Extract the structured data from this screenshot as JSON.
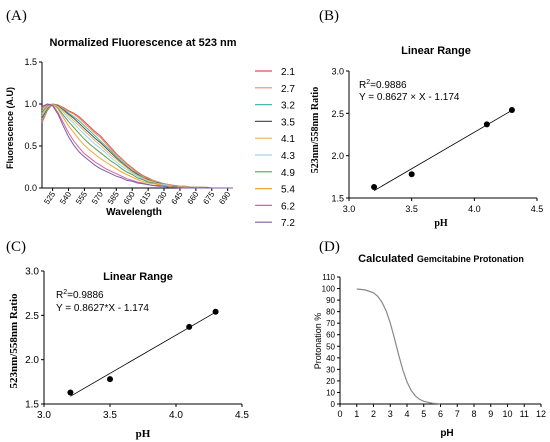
{
  "panels": {
    "a": {
      "letter": "(A)"
    },
    "b": {
      "letter": "(B)"
    },
    "c": {
      "letter": "(C)"
    },
    "d": {
      "letter": "(D)"
    }
  },
  "chart_data": [
    {
      "panel": "(A)",
      "type": "line",
      "title": "Normalized Fluorescence at 523 nm",
      "xlabel": "Wavelength",
      "ylabel": "Fluorescence (A.U)",
      "xlim": [
        515,
        695
      ],
      "ylim": [
        0,
        1.5
      ],
      "xticks": [
        525,
        540,
        555,
        570,
        585,
        600,
        615,
        630,
        645,
        660,
        675,
        690
      ],
      "yticks": [
        0.0,
        0.5,
        1.0,
        1.5
      ],
      "legend_position": "right",
      "x": [
        515,
        520,
        525,
        530,
        535,
        540,
        545,
        550,
        555,
        560,
        565,
        570,
        575,
        580,
        585,
        590,
        595,
        600,
        605,
        610,
        615,
        620,
        625,
        630,
        635,
        640,
        645,
        650,
        655,
        660,
        665,
        670,
        675,
        680,
        685,
        690,
        695
      ],
      "series": [
        {
          "name": "2.1",
          "color": "#d9534f",
          "values": [
            0.78,
            0.92,
            1.0,
            0.99,
            0.96,
            0.92,
            0.89,
            0.85,
            0.79,
            0.73,
            0.67,
            0.62,
            0.55,
            0.48,
            0.41,
            0.35,
            0.29,
            0.24,
            0.19,
            0.15,
            0.12,
            0.09,
            0.07,
            0.05,
            0.04,
            0.03,
            0.02,
            0.02,
            0.01,
            0.01,
            0.01,
            0.01,
            0.0,
            0.0,
            0.0,
            0.0,
            0.0
          ]
        },
        {
          "name": "2.7",
          "color": "#e8915a",
          "values": [
            0.8,
            0.93,
            1.0,
            0.99,
            0.95,
            0.91,
            0.88,
            0.83,
            0.77,
            0.71,
            0.65,
            0.6,
            0.53,
            0.46,
            0.4,
            0.34,
            0.28,
            0.23,
            0.18,
            0.14,
            0.11,
            0.09,
            0.07,
            0.05,
            0.04,
            0.03,
            0.02,
            0.02,
            0.01,
            0.01,
            0.01,
            0.0,
            0.0,
            0.0,
            0.0,
            0.0,
            0.0
          ]
        },
        {
          "name": "3.2",
          "color": "#4db8b0",
          "values": [
            0.82,
            0.94,
            1.0,
            0.98,
            0.94,
            0.89,
            0.85,
            0.8,
            0.74,
            0.68,
            0.62,
            0.56,
            0.5,
            0.44,
            0.38,
            0.32,
            0.26,
            0.21,
            0.17,
            0.13,
            0.1,
            0.08,
            0.06,
            0.05,
            0.03,
            0.03,
            0.02,
            0.01,
            0.01,
            0.01,
            0.01,
            0.0,
            0.0,
            0.0,
            0.0,
            0.0,
            0.0
          ]
        },
        {
          "name": "3.5",
          "color": "#555555",
          "values": [
            0.84,
            0.95,
            1.0,
            0.98,
            0.93,
            0.88,
            0.83,
            0.77,
            0.71,
            0.65,
            0.59,
            0.54,
            0.48,
            0.42,
            0.36,
            0.3,
            0.25,
            0.2,
            0.16,
            0.12,
            0.1,
            0.07,
            0.06,
            0.04,
            0.03,
            0.02,
            0.02,
            0.01,
            0.01,
            0.01,
            0.0,
            0.0,
            0.0,
            0.0,
            0.0,
            0.0,
            0.0
          ]
        },
        {
          "name": "4.1",
          "color": "#e6b95c",
          "values": [
            0.86,
            0.96,
            1.0,
            0.97,
            0.92,
            0.86,
            0.8,
            0.74,
            0.68,
            0.62,
            0.56,
            0.51,
            0.45,
            0.39,
            0.34,
            0.29,
            0.24,
            0.19,
            0.15,
            0.12,
            0.09,
            0.07,
            0.05,
            0.04,
            0.03,
            0.02,
            0.02,
            0.01,
            0.01,
            0.01,
            0.0,
            0.0,
            0.0,
            0.0,
            0.0,
            0.0,
            0.0
          ]
        },
        {
          "name": "4.3",
          "color": "#9fd3ea",
          "values": [
            0.88,
            0.97,
            1.0,
            0.96,
            0.9,
            0.83,
            0.77,
            0.7,
            0.64,
            0.58,
            0.52,
            0.47,
            0.42,
            0.36,
            0.31,
            0.26,
            0.22,
            0.18,
            0.14,
            0.11,
            0.08,
            0.06,
            0.05,
            0.04,
            0.03,
            0.02,
            0.01,
            0.01,
            0.01,
            0.0,
            0.0,
            0.0,
            0.0,
            0.0,
            0.0,
            0.0,
            0.0
          ]
        },
        {
          "name": "4.9",
          "color": "#5aa05a",
          "values": [
            0.9,
            0.98,
            1.0,
            0.95,
            0.87,
            0.79,
            0.72,
            0.65,
            0.58,
            0.52,
            0.47,
            0.42,
            0.37,
            0.32,
            0.28,
            0.23,
            0.19,
            0.16,
            0.12,
            0.1,
            0.07,
            0.06,
            0.04,
            0.03,
            0.02,
            0.02,
            0.01,
            0.01,
            0.01,
            0.0,
            0.0,
            0.0,
            0.0,
            0.0,
            0.0,
            0.0,
            0.0
          ]
        },
        {
          "name": "5.4",
          "color": "#f0a830",
          "values": [
            0.92,
            0.99,
            1.0,
            0.94,
            0.84,
            0.74,
            0.66,
            0.58,
            0.51,
            0.45,
            0.4,
            0.35,
            0.31,
            0.27,
            0.23,
            0.19,
            0.16,
            0.13,
            0.1,
            0.08,
            0.06,
            0.05,
            0.04,
            0.03,
            0.02,
            0.01,
            0.01,
            0.01,
            0.0,
            0.0,
            0.0,
            0.0,
            0.0,
            0.0,
            0.0,
            0.0,
            0.0
          ]
        },
        {
          "name": "6.2",
          "color": "#d65fa8",
          "values": [
            0.95,
            1.0,
            0.99,
            0.9,
            0.78,
            0.66,
            0.56,
            0.48,
            0.41,
            0.36,
            0.31,
            0.27,
            0.23,
            0.2,
            0.17,
            0.14,
            0.11,
            0.09,
            0.07,
            0.06,
            0.04,
            0.03,
            0.03,
            0.02,
            0.01,
            0.01,
            0.01,
            0.0,
            0.0,
            0.0,
            0.0,
            0.0,
            0.0,
            0.0,
            0.0,
            0.0,
            0.0
          ]
        },
        {
          "name": "7.2",
          "color": "#7b5ea7",
          "values": [
            0.97,
            1.0,
            0.98,
            0.88,
            0.74,
            0.61,
            0.51,
            0.43,
            0.37,
            0.32,
            0.27,
            0.23,
            0.2,
            0.17,
            0.14,
            0.12,
            0.09,
            0.08,
            0.06,
            0.05,
            0.04,
            0.03,
            0.02,
            0.02,
            0.01,
            0.01,
            0.0,
            0.0,
            0.0,
            0.0,
            0.0,
            0.0,
            0.0,
            0.0,
            0.0,
            0.0,
            0.0
          ]
        }
      ]
    },
    {
      "panel": "(B)",
      "type": "scatter",
      "title": "Linear Range",
      "xlabel": "pH",
      "ylabel": "523nm/558nm Ratio",
      "xlim": [
        3.0,
        4.5
      ],
      "ylim": [
        1.5,
        3.0
      ],
      "xticks": [
        "3.0",
        "3.5",
        "4.0",
        "4.5"
      ],
      "yticks": [
        "1.5",
        "2.0",
        "2.5",
        "3.0"
      ],
      "points": {
        "x": [
          3.2,
          3.5,
          4.1,
          4.3
        ],
        "y": [
          1.63,
          1.78,
          2.37,
          2.54
        ]
      },
      "fit": {
        "slope": 0.8627,
        "intercept": -1.174,
        "x_range": [
          3.2,
          4.3
        ]
      },
      "annotations": {
        "r2_prefix": "R",
        "r2_sup": "2",
        "r2_value": "=0.9886",
        "equation": "Y = 0.8627 × X - 1.174"
      }
    },
    {
      "panel": "(C)",
      "type": "scatter",
      "title": "Linear Range",
      "xlabel": "pH",
      "ylabel": "523nm/558nm Ratio",
      "xlim": [
        3.0,
        4.5
      ],
      "ylim": [
        1.5,
        3.0
      ],
      "xticks": [
        "3.0",
        "3.5",
        "4.0",
        "4.5"
      ],
      "yticks": [
        "1.5",
        "2.0",
        "2.5",
        "3.0"
      ],
      "points": {
        "x": [
          3.2,
          3.5,
          4.1,
          4.3
        ],
        "y": [
          1.63,
          1.78,
          2.37,
          2.54
        ]
      },
      "fit": {
        "slope": 0.8627,
        "intercept": -1.174,
        "x_range": [
          3.2,
          4.3
        ]
      },
      "annotations": {
        "r2_prefix": "R",
        "r2_sup": "2",
        "r2_value": "=0.9886",
        "equation": "Y = 0.8627*X - 1.174"
      }
    },
    {
      "panel": "(D)",
      "type": "line",
      "title_main": "Calculated",
      "title_sub": "Gemcitabine Protonation",
      "xlabel": "pH",
      "ylabel": "Protonation %",
      "xlim": [
        0,
        12
      ],
      "ylim": [
        0,
        110
      ],
      "xticks": [
        0,
        1,
        2,
        3,
        4,
        5,
        6,
        7,
        8,
        9,
        10,
        11,
        12
      ],
      "yticks": [
        0,
        10,
        20,
        30,
        40,
        50,
        60,
        70,
        80,
        90,
        100,
        110
      ],
      "curve_color": "#888888",
      "x": [
        1.0,
        1.5,
        2.0,
        2.25,
        2.5,
        2.75,
        3.0,
        3.25,
        3.5,
        3.75,
        4.0,
        4.25,
        4.5,
        4.75,
        5.0,
        5.5,
        6.0
      ],
      "y": [
        99.6,
        98.8,
        96.3,
        93.3,
        88.3,
        80.8,
        70.2,
        57.0,
        42.7,
        29.6,
        19.1,
        11.7,
        7.0,
        4.0,
        2.3,
        0.7,
        0.2
      ]
    }
  ]
}
